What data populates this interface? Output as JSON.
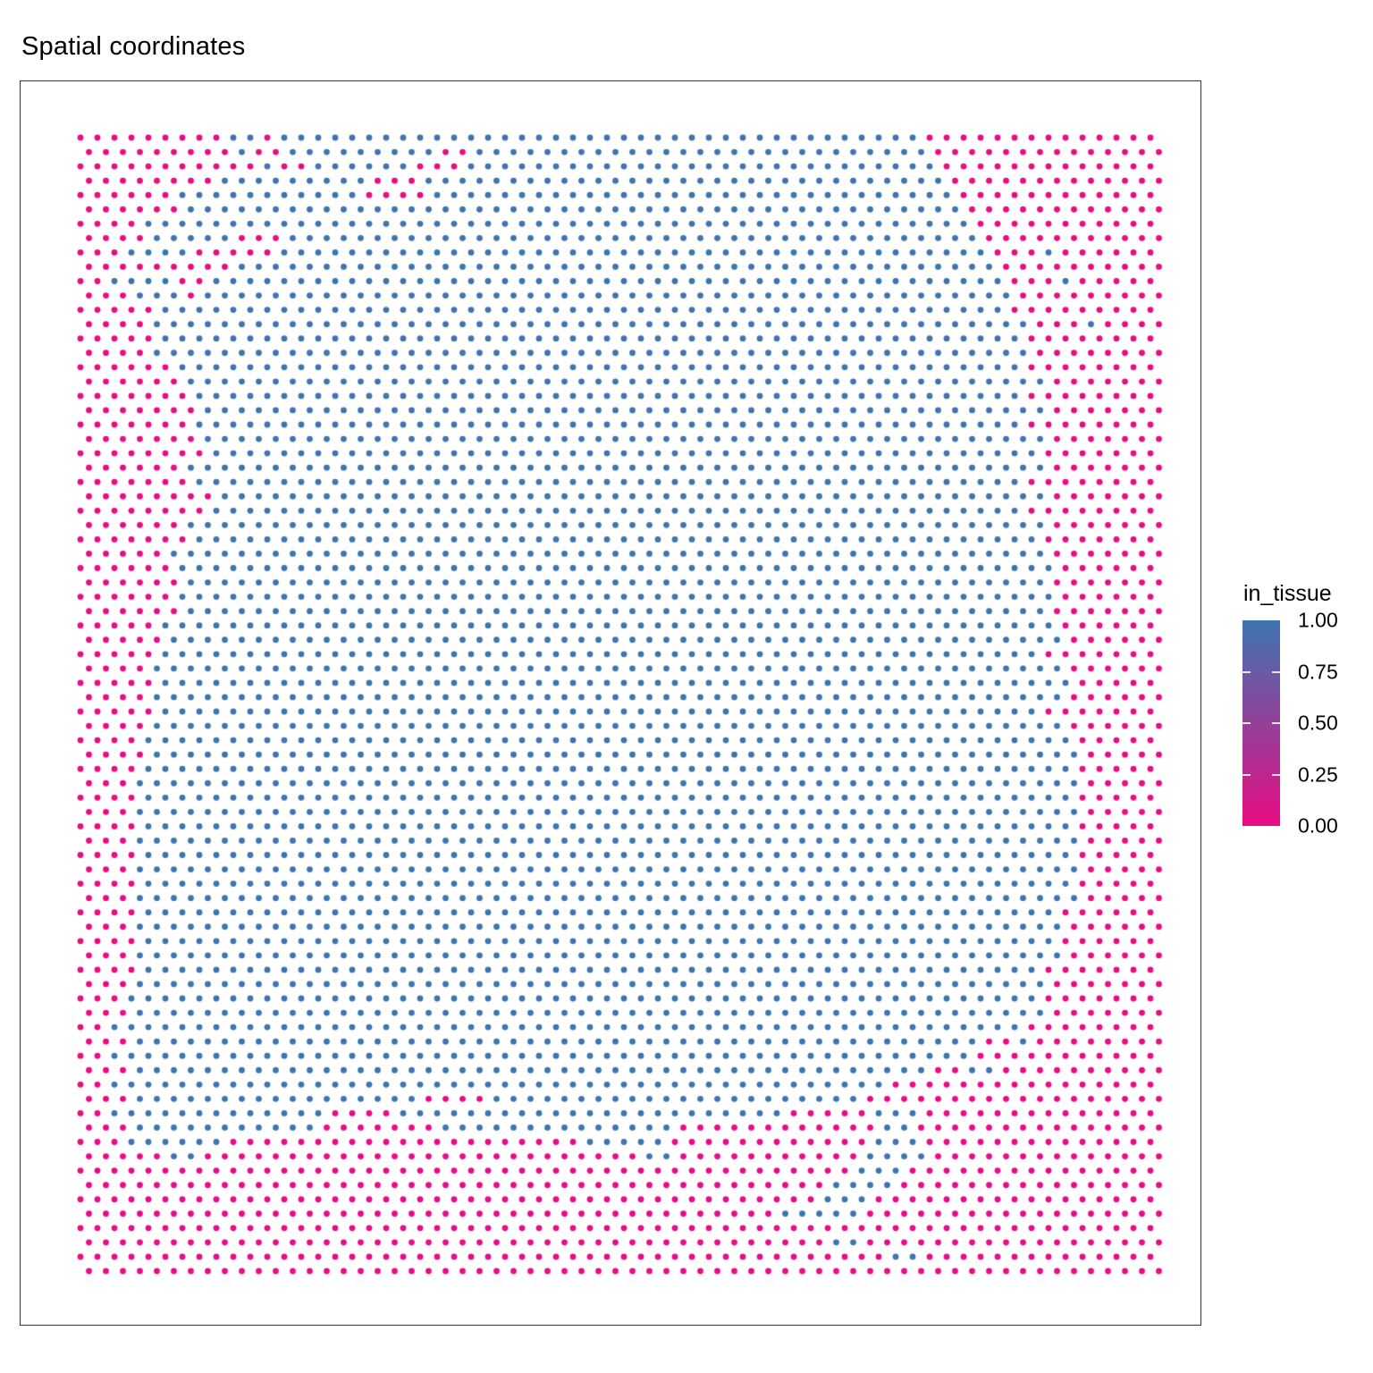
{
  "header": {
    "title": "Spatial coordinates"
  },
  "legend": {
    "title": "in_tissue",
    "ticks": [
      "1.00",
      "0.75",
      "0.50",
      "0.25",
      "0.00"
    ]
  },
  "colors": {
    "in_tissue_high": "#3D75B1",
    "in_tissue_low": "#E90C83",
    "panel_border": "#333333",
    "text": "#000000"
  },
  "chart_data": {
    "type": "scatter",
    "title": "Spatial coordinates",
    "legend_title": "in_tissue",
    "legend_position": "right",
    "axes": "none (no axis ticks or labels shown)",
    "color_scale": {
      "low_value": 0.0,
      "low_color": "#E90C83",
      "high_value": 1.0,
      "high_color": "#3D75B1",
      "tick_values": [
        1.0,
        0.75,
        0.5,
        0.25,
        0.0
      ]
    },
    "grid": {
      "columns": 64,
      "rows": 80,
      "arrangement": "hexagonal-offset (odd rows shifted half a column)"
    },
    "encoding": "Spots with in_tissue=1 are blue, in_tissue=0 are pink. Blue column segments [startCol,endCol] listed per row; all other spots in the row are pink.",
    "in_tissue_segments_by_row": [
      [
        [
          9,
          10
        ],
        [
          12,
          49
        ]
      ],
      [
        [
          9,
          9
        ],
        [
          12,
          20
        ],
        [
          23,
          49
        ]
      ],
      [
        [
          11,
          11
        ],
        [
          14,
          19
        ],
        [
          23,
          50
        ]
      ],
      [
        [
          8,
          16
        ],
        [
          20,
          50
        ]
      ],
      [
        [
          6,
          16
        ],
        [
          21,
          51
        ]
      ],
      [
        [
          6,
          51
        ]
      ],
      [
        [
          4,
          52
        ]
      ],
      [
        [
          4,
          8
        ],
        [
          12,
          52
        ]
      ],
      [
        [
          3,
          6
        ],
        [
          12,
          53
        ],
        [
          57,
          57
        ]
      ],
      [
        [
          9,
          53
        ]
      ],
      [
        [
          2,
          5
        ],
        [
          8,
          54
        ],
        [
          58,
          58
        ]
      ],
      [
        [
          3,
          5
        ],
        [
          7,
          54
        ]
      ],
      [
        [
          5,
          54
        ]
      ],
      [
        [
          4,
          55
        ],
        [
          59,
          59
        ]
      ],
      [
        [
          5,
          55
        ]
      ],
      [
        [
          4,
          55
        ]
      ],
      [
        [
          6,
          55
        ]
      ],
      [
        [
          6,
          56
        ]
      ],
      [
        [
          7,
          55
        ]
      ],
      [
        [
          7,
          56
        ]
      ],
      [
        [
          7,
          55
        ]
      ],
      [
        [
          7,
          56
        ]
      ],
      [
        [
          8,
          56
        ]
      ],
      [
        [
          6,
          56
        ]
      ],
      [
        [
          7,
          55
        ]
      ],
      [
        [
          8,
          56
        ]
      ],
      [
        [
          8,
          55
        ]
      ],
      [
        [
          6,
          56
        ]
      ],
      [
        [
          7,
          56
        ]
      ],
      [
        [
          5,
          56
        ]
      ],
      [
        [
          6,
          57
        ]
      ],
      [
        [
          6,
          56
        ]
      ],
      [
        [
          6,
          57
        ]
      ],
      [
        [
          6,
          56
        ]
      ],
      [
        [
          5,
          57
        ]
      ],
      [
        [
          5,
          57
        ]
      ],
      [
        [
          5,
          56
        ]
      ],
      [
        [
          4,
          57
        ]
      ],
      [
        [
          5,
          58
        ]
      ],
      [
        [
          4,
          57
        ]
      ],
      [
        [
          5,
          56
        ]
      ],
      [
        [
          4,
          57
        ]
      ],
      [
        [
          4,
          58
        ]
      ],
      [
        [
          4,
          58
        ]
      ],
      [
        [
          4,
          58
        ]
      ],
      [
        [
          3,
          58
        ]
      ],
      [
        [
          4,
          58
        ]
      ],
      [
        [
          3,
          58
        ]
      ],
      [
        [
          4,
          58
        ]
      ],
      [
        [
          3,
          58
        ]
      ],
      [
        [
          4,
          58
        ]
      ],
      [
        [
          3,
          58
        ]
      ],
      [
        [
          4,
          58
        ]
      ],
      [
        [
          3,
          58
        ]
      ],
      [
        [
          4,
          57
        ]
      ],
      [
        [
          3,
          57
        ]
      ],
      [
        [
          4,
          57
        ]
      ],
      [
        [
          3,
          57
        ]
      ],
      [
        [
          4,
          56
        ]
      ],
      [
        [
          3,
          56
        ]
      ],
      [
        [
          3,
          56
        ]
      ],
      [
        [
          3,
          56
        ]
      ],
      [
        [
          2,
          55
        ]
      ],
      [
        [
          3,
          52
        ],
        [
          55,
          55
        ]
      ],
      [
        [
          2,
          52
        ]
      ],
      [
        [
          3,
          49
        ],
        [
          52,
          53
        ]
      ],
      [
        [
          2,
          47
        ]
      ],
      [
        [
          3,
          19
        ],
        [
          24,
          45
        ]
      ],
      [
        [
          2,
          14
        ],
        [
          19,
          41
        ],
        [
          47,
          49
        ]
      ],
      [
        [
          3,
          13
        ],
        [
          21,
          34
        ],
        [
          47,
          48
        ]
      ],
      [
        [
          3,
          8
        ],
        [
          30,
          34
        ],
        [
          47,
          49
        ]
      ],
      [
        [
          5,
          6
        ],
        [
          33,
          34
        ],
        [
          46,
          49
        ]
      ],
      [
        [
          46,
          48
        ]
      ],
      [
        [
          44,
          47
        ]
      ],
      [
        [
          44,
          46
        ]
      ],
      [
        [
          41,
          45
        ]
      ],
      [],
      [
        [
          44,
          45
        ]
      ],
      [
        [
          48,
          49
        ]
      ],
      []
    ]
  }
}
